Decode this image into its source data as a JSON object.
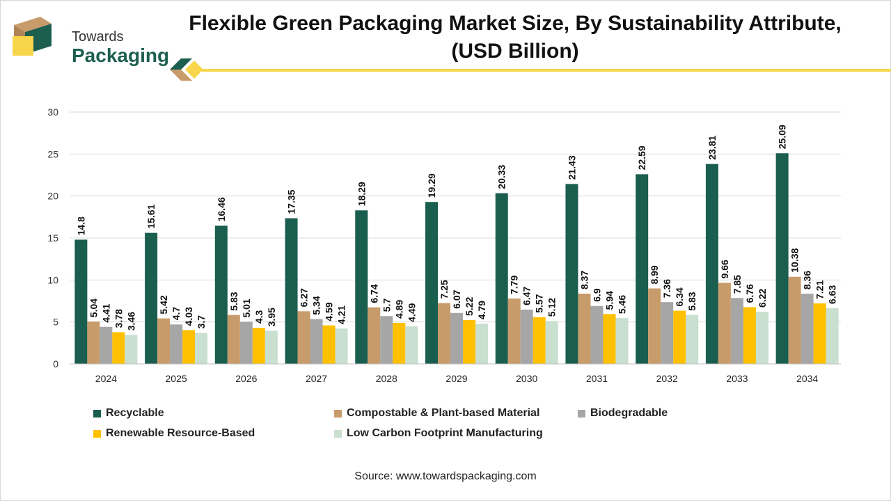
{
  "logo": {
    "line1": "Towards",
    "line2": "Packaging"
  },
  "colors": {
    "brand_green": "#1d5f4f",
    "brand_tan": "#c89b6b",
    "brand_yellow": "#f7d64c"
  },
  "chart_data": {
    "type": "bar",
    "title": "Flexible Green Packaging Market Size, By Sustainability Attribute, (USD Billion)",
    "categories": [
      "2024",
      "2025",
      "2026",
      "2027",
      "2028",
      "2029",
      "2030",
      "2031",
      "2032",
      "2033",
      "2034"
    ],
    "series": [
      {
        "name": "Recyclable",
        "color": "#1a5e4f",
        "values": [
          14.8,
          15.61,
          16.46,
          17.35,
          18.29,
          19.29,
          20.33,
          21.43,
          22.59,
          23.81,
          25.09
        ]
      },
      {
        "name": "Compostable & Plant-based Material",
        "color": "#c89b6b",
        "values": [
          5.04,
          5.42,
          5.83,
          6.27,
          6.74,
          7.25,
          7.79,
          8.37,
          8.99,
          9.66,
          10.38
        ]
      },
      {
        "name": "Biodegradable",
        "color": "#a6a6a6",
        "values": [
          4.41,
          4.7,
          5.01,
          5.34,
          5.7,
          6.07,
          6.47,
          6.9,
          7.36,
          7.85,
          8.36
        ]
      },
      {
        "name": "Renewable Resource-Based",
        "color": "#ffc000",
        "values": [
          3.78,
          4.03,
          4.3,
          4.59,
          4.89,
          5.22,
          5.57,
          5.94,
          6.34,
          6.76,
          7.21
        ]
      },
      {
        "name": "Low Carbon Footprint Manufacturing",
        "color": "#c9dfcf",
        "values": [
          3.46,
          3.7,
          3.95,
          4.21,
          4.49,
          4.79,
          5.12,
          5.46,
          5.83,
          6.22,
          6.63
        ]
      }
    ],
    "ylim": [
      0,
      30
    ],
    "yticks": [
      0,
      5,
      10,
      15,
      20,
      25,
      30
    ],
    "grid": true,
    "legend": "bottom"
  },
  "source": "Source: www.towardspackaging.com"
}
